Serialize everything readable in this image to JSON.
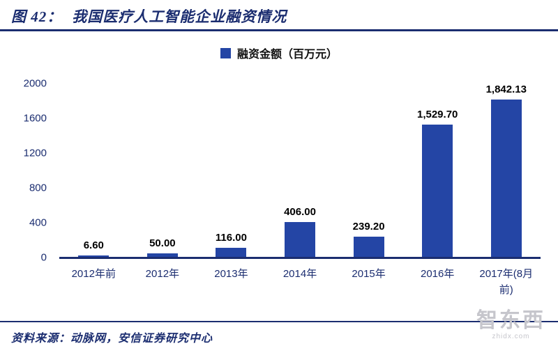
{
  "header": {
    "figure_label": "图 42：",
    "title": "我国医疗人工智能企业融资情况"
  },
  "legend": {
    "label": "融资金额（百万元）"
  },
  "chart_data": {
    "type": "bar",
    "title": "我国医疗人工智能企业融资情况",
    "series_name": "融资金额（百万元）",
    "categories": [
      "2012年前",
      "2012年",
      "2013年",
      "2014年",
      "2015年",
      "2016年",
      "2017年(8月前)"
    ],
    "values": [
      6.6,
      50.0,
      116.0,
      406.0,
      239.2,
      1529.7,
      1842.13
    ],
    "value_labels": [
      "6.60",
      "50.00",
      "116.00",
      "406.00",
      "239.20",
      "1,529.70",
      "1,842.13"
    ],
    "xlabel": "",
    "ylabel": "",
    "ylim": [
      0,
      2000
    ],
    "yticks": [
      0,
      400,
      800,
      1200,
      1600,
      2000
    ],
    "grid": false,
    "legend_position": "top-center",
    "bar_color": "#2445A5"
  },
  "footer": {
    "source": "资料来源：动脉网，安信证券研究中心"
  },
  "watermark": {
    "text": "智东西",
    "subtext": "zhidx.com"
  },
  "colors": {
    "navy": "#1B2D70",
    "bar": "#2445A5",
    "value_label": "#000000"
  }
}
